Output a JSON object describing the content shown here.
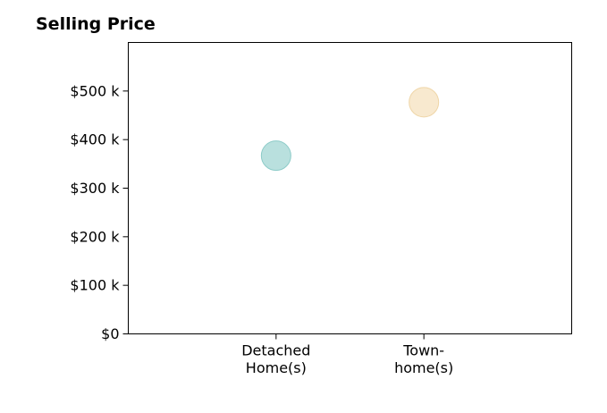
{
  "chart_data": {
    "type": "scatter",
    "title": "Selling Price",
    "xlabel": "",
    "ylabel": "",
    "categories": [
      [
        "Detached",
        "Home(s)"
      ],
      [
        "Town-",
        "home(s)"
      ]
    ],
    "values": [
      367000,
      477000
    ],
    "point_colors": [
      "#a8d8d6",
      "#f6e4c3"
    ],
    "point_stroke_colors": [
      "#8ccbc8",
      "#efd6a8"
    ],
    "ylim": [
      0,
      600000
    ],
    "xlim": [
      -1,
      2
    ],
    "y_ticks": [
      0,
      100000,
      200000,
      300000,
      400000,
      500000
    ],
    "y_tick_labels": [
      "$0",
      "$100 k",
      "$200 k",
      "$300 k",
      "$400 k",
      "$500 k"
    ],
    "grid": false,
    "legend": "none"
  }
}
